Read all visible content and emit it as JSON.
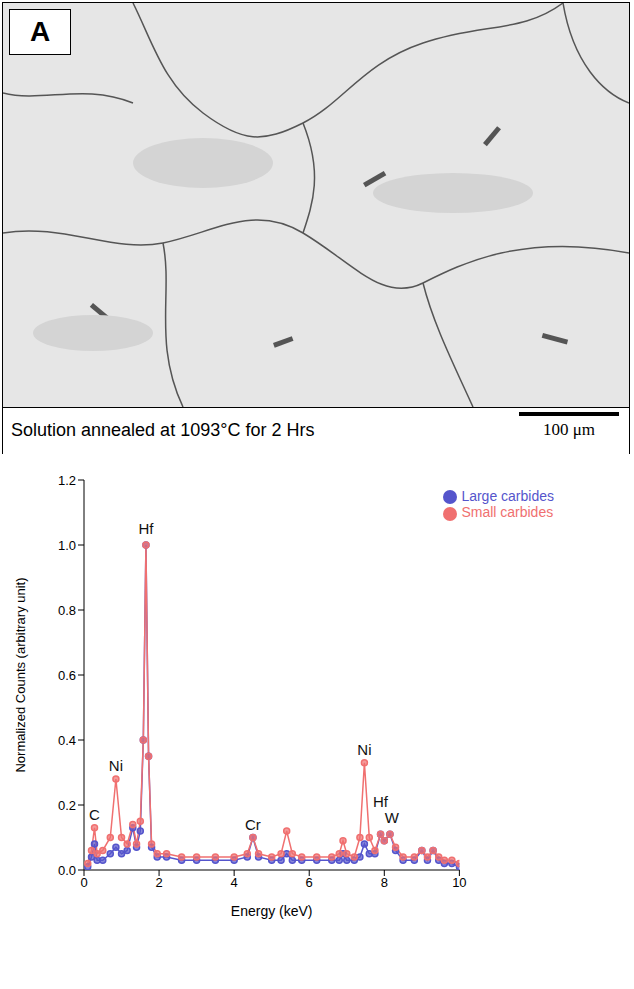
{
  "micrograph": {
    "label": "A",
    "caption": "Solution annealed at 1093°C for 2 Hrs",
    "scale_bar": "100 μm"
  },
  "chart_data": {
    "type": "line",
    "x_label": "Energy (keV)",
    "y_label": "Normalized Counts (arbitrary unit)",
    "xlim": [
      0,
      10
    ],
    "xticks": [
      0,
      2,
      4,
      6,
      8,
      10
    ],
    "ylim": [
      0,
      1.2
    ],
    "yticks": [
      {
        "value": 0,
        "label": "0.0"
      },
      0.2,
      0.4,
      0.6,
      0.8,
      {
        "value": 1,
        "label": "1.0"
      },
      1.2
    ],
    "legend": "upper right",
    "grid": false,
    "x": [
      0.1,
      0.2,
      0.28,
      0.35,
      0.5,
      0.7,
      0.85,
      1.0,
      1.15,
      1.3,
      1.4,
      1.5,
      1.58,
      1.65,
      1.72,
      1.8,
      1.95,
      2.2,
      2.6,
      3.0,
      3.5,
      4.0,
      4.35,
      4.5,
      4.65,
      5.0,
      5.25,
      5.4,
      5.55,
      5.8,
      6.2,
      6.6,
      6.8,
      6.9,
      7.0,
      7.2,
      7.35,
      7.47,
      7.6,
      7.75,
      7.9,
      8.0,
      8.15,
      8.3,
      8.5,
      8.8,
      9.0,
      9.15,
      9.3,
      9.45,
      9.6,
      9.8,
      10.0
    ],
    "series": [
      {
        "name": "Large carbides",
        "color": "#5555cc",
        "marker": "circle",
        "values": [
          0.01,
          0.04,
          0.08,
          0.03,
          0.03,
          0.05,
          0.07,
          0.05,
          0.06,
          0.13,
          0.07,
          0.12,
          0.4,
          1.0,
          0.35,
          0.07,
          0.04,
          0.04,
          0.03,
          0.03,
          0.03,
          0.03,
          0.04,
          0.1,
          0.04,
          0.03,
          0.03,
          0.05,
          0.03,
          0.03,
          0.03,
          0.03,
          0.03,
          0.05,
          0.03,
          0.03,
          0.04,
          0.08,
          0.05,
          0.05,
          0.11,
          0.09,
          0.11,
          0.06,
          0.03,
          0.03,
          0.06,
          0.03,
          0.06,
          0.03,
          0.02,
          0.02,
          0.01
        ]
      },
      {
        "name": "Small carbides",
        "color": "#f07070",
        "marker": "circle",
        "values": [
          0.02,
          0.06,
          0.13,
          0.05,
          0.06,
          0.1,
          0.28,
          0.1,
          0.08,
          0.14,
          0.08,
          0.15,
          0.4,
          1.0,
          0.35,
          0.08,
          0.05,
          0.05,
          0.04,
          0.04,
          0.04,
          0.04,
          0.05,
          0.1,
          0.05,
          0.04,
          0.05,
          0.12,
          0.05,
          0.04,
          0.04,
          0.04,
          0.05,
          0.09,
          0.05,
          0.04,
          0.1,
          0.33,
          0.1,
          0.06,
          0.11,
          0.09,
          0.11,
          0.07,
          0.04,
          0.04,
          0.06,
          0.04,
          0.06,
          0.04,
          0.03,
          0.03,
          0.02
        ]
      }
    ],
    "annotations": [
      {
        "text": "C",
        "x": 0.28,
        "y": 0.17
      },
      {
        "text": "Ni",
        "x": 0.85,
        "y": 0.32
      },
      {
        "text": "Hf",
        "x": 1.65,
        "y": 1.05
      },
      {
        "text": "Cr",
        "x": 4.5,
        "y": 0.14
      },
      {
        "text": "Ni",
        "x": 7.47,
        "y": 0.37
      },
      {
        "text": "Hf",
        "x": 7.9,
        "y": 0.21
      },
      {
        "text": "W",
        "x": 8.2,
        "y": 0.16
      }
    ]
  }
}
